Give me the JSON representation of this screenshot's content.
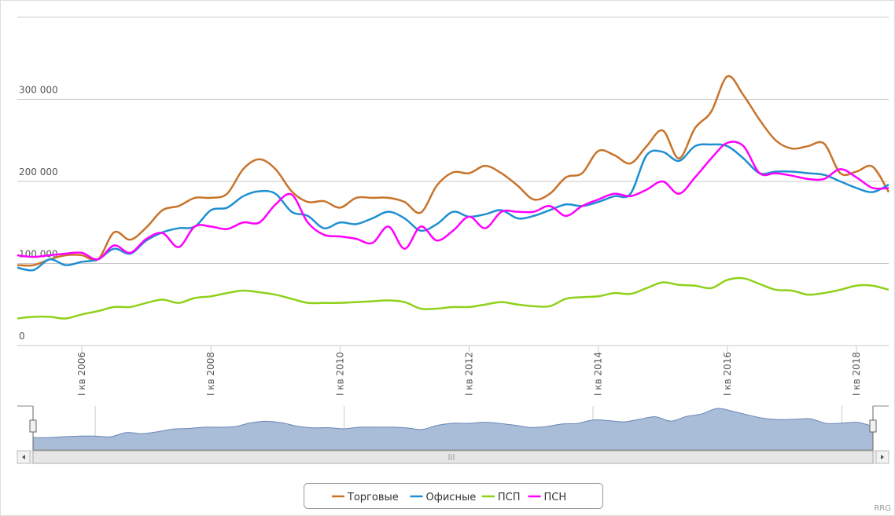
{
  "chart_data": {
    "type": "line",
    "x": [
      2005,
      2005.25,
      2005.5,
      2005.75,
      2006,
      2006.25,
      2006.5,
      2006.75,
      2007,
      2007.25,
      2007.5,
      2007.75,
      2008,
      2008.25,
      2008.5,
      2008.75,
      2009,
      2009.25,
      2009.5,
      2009.75,
      2010,
      2010.25,
      2010.5,
      2010.75,
      2011,
      2011.25,
      2011.5,
      2011.75,
      2012,
      2012.25,
      2012.5,
      2012.75,
      2013,
      2013.25,
      2013.5,
      2013.75,
      2014,
      2014.25,
      2014.5,
      2014.75,
      2015,
      2015.25,
      2015.5,
      2015.75,
      2016,
      2016.25,
      2016.5,
      2016.75,
      2017,
      2017.25,
      2017.5,
      2017.75,
      2018,
      2018.25,
      2018.5
    ],
    "xlim": [
      2005,
      2018.5
    ],
    "xticks": [
      {
        "value": 2006,
        "label": "I кв 2006"
      },
      {
        "value": 2008,
        "label": "I кв 2008"
      },
      {
        "value": 2010,
        "label": "I кв 2010"
      },
      {
        "value": 2012,
        "label": "I кв 2012"
      },
      {
        "value": 2014,
        "label": "I кв 2014"
      },
      {
        "value": 2016,
        "label": "I кв 2016"
      },
      {
        "value": 2018,
        "label": "I кв 2018"
      }
    ],
    "ylim": [
      0,
      400000
    ],
    "yticks": [
      0,
      {
        "value": 100000,
        "label": "100 000"
      },
      {
        "value": 200000,
        "label": "200 000"
      },
      {
        "value": 300000,
        "label": "300 000"
      }
    ],
    "grid": true,
    "series": [
      {
        "name": "Торговые",
        "color": "#c8732a",
        "values": [
          98000,
          98000,
          105000,
          110000,
          110000,
          105000,
          138000,
          129000,
          144000,
          165000,
          170000,
          180000,
          180000,
          185000,
          215000,
          227000,
          215000,
          188000,
          175000,
          176000,
          168000,
          180000,
          180000,
          180000,
          175000,
          162000,
          195000,
          211000,
          210000,
          219000,
          210000,
          195000,
          178000,
          185000,
          205000,
          210000,
          237000,
          232000,
          222000,
          243000,
          262000,
          228000,
          265000,
          285000,
          328000,
          305000,
          275000,
          250000,
          240000,
          243000,
          246000,
          210000,
          212000,
          218000,
          187000
        ]
      },
      {
        "name": "Офисные",
        "color": "#1e90d2",
        "values": [
          95000,
          92000,
          105000,
          98000,
          102000,
          105000,
          118000,
          112000,
          128000,
          138000,
          143000,
          145000,
          165000,
          168000,
          182000,
          188000,
          185000,
          163000,
          158000,
          143000,
          150000,
          148000,
          155000,
          163000,
          155000,
          140000,
          148000,
          163000,
          157000,
          160000,
          165000,
          155000,
          158000,
          165000,
          172000,
          170000,
          175000,
          182000,
          185000,
          232000,
          236000,
          225000,
          243000,
          245000,
          243000,
          228000,
          210000,
          212000,
          212000,
          210000,
          208000,
          200000,
          192000,
          187000,
          196000
        ]
      },
      {
        "name": "ПСП",
        "color": "#8fd11a",
        "values": [
          33000,
          35000,
          35000,
          33000,
          38000,
          42000,
          47000,
          47000,
          52000,
          56000,
          52000,
          58000,
          60000,
          64000,
          67000,
          65000,
          62000,
          57000,
          52000,
          52000,
          52000,
          53000,
          54000,
          55000,
          53000,
          45000,
          45000,
          47000,
          47000,
          50000,
          53000,
          50000,
          48000,
          48000,
          57000,
          59000,
          60000,
          64000,
          63000,
          70000,
          77000,
          74000,
          73000,
          70000,
          80000,
          82000,
          75000,
          68000,
          67000,
          62000,
          64000,
          68000,
          73000,
          73000,
          68000
        ]
      },
      {
        "name": "ПСН",
        "color": "#ff00ff",
        "values": [
          110000,
          108000,
          110000,
          112000,
          113000,
          105000,
          122000,
          113000,
          130000,
          137000,
          120000,
          145000,
          145000,
          142000,
          150000,
          150000,
          172000,
          184000,
          150000,
          135000,
          133000,
          130000,
          125000,
          145000,
          118000,
          145000,
          128000,
          140000,
          157000,
          143000,
          163000,
          163000,
          163000,
          170000,
          158000,
          170000,
          178000,
          185000,
          182000,
          190000,
          200000,
          185000,
          205000,
          228000,
          247000,
          243000,
          210000,
          210000,
          207000,
          203000,
          203000,
          215000,
          205000,
          192000,
          192000
        ]
      }
    ],
    "navigator_xticks": [
      2006,
      2010,
      2014,
      2018
    ],
    "credits": "RRG"
  }
}
